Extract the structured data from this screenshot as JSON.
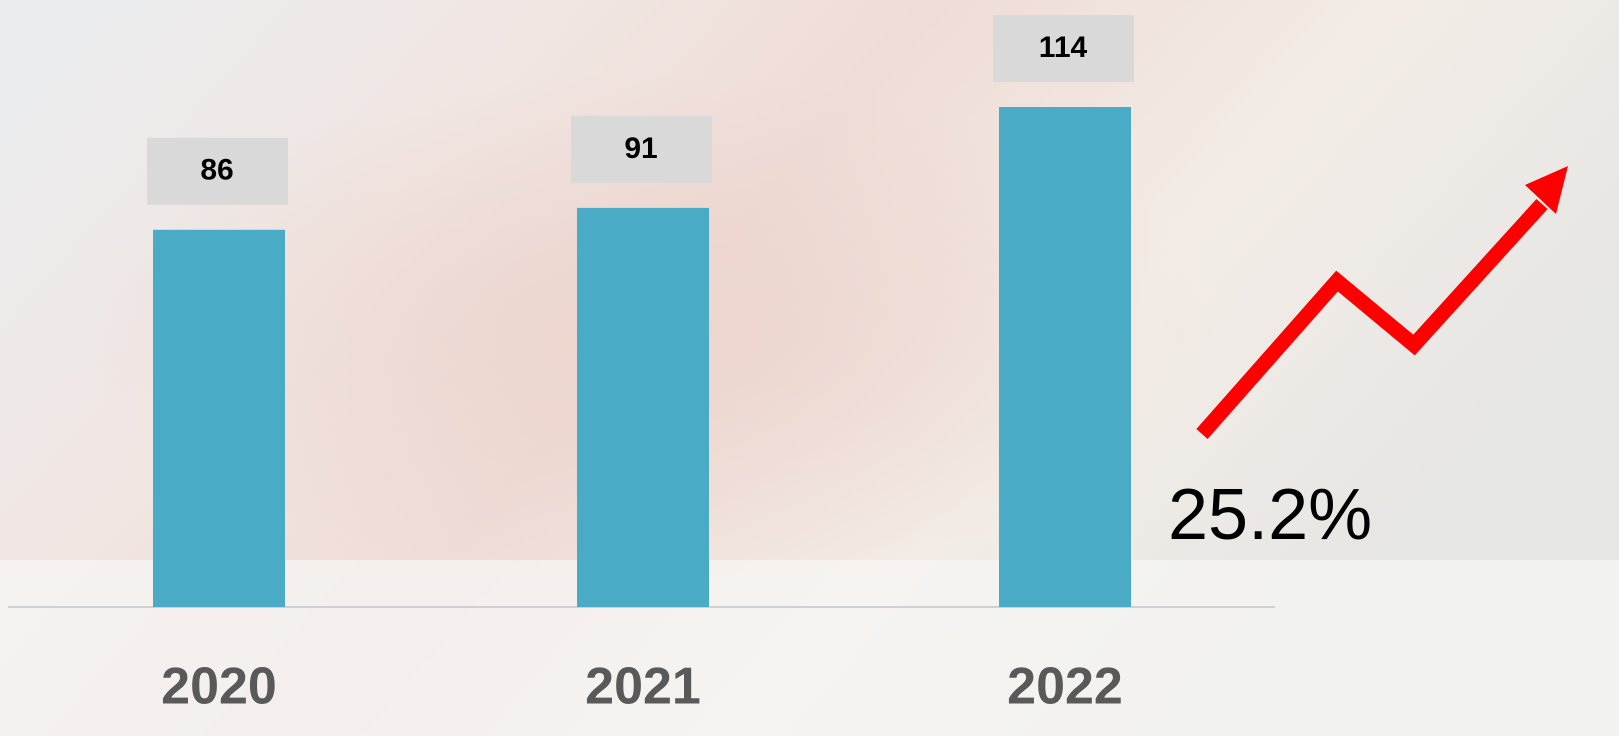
{
  "chart_data": {
    "type": "bar",
    "categories": [
      "2020",
      "2021",
      "2022"
    ],
    "values": [
      86,
      91,
      114
    ],
    "color": "#4aabc6",
    "annotation": "25.2%"
  }
}
